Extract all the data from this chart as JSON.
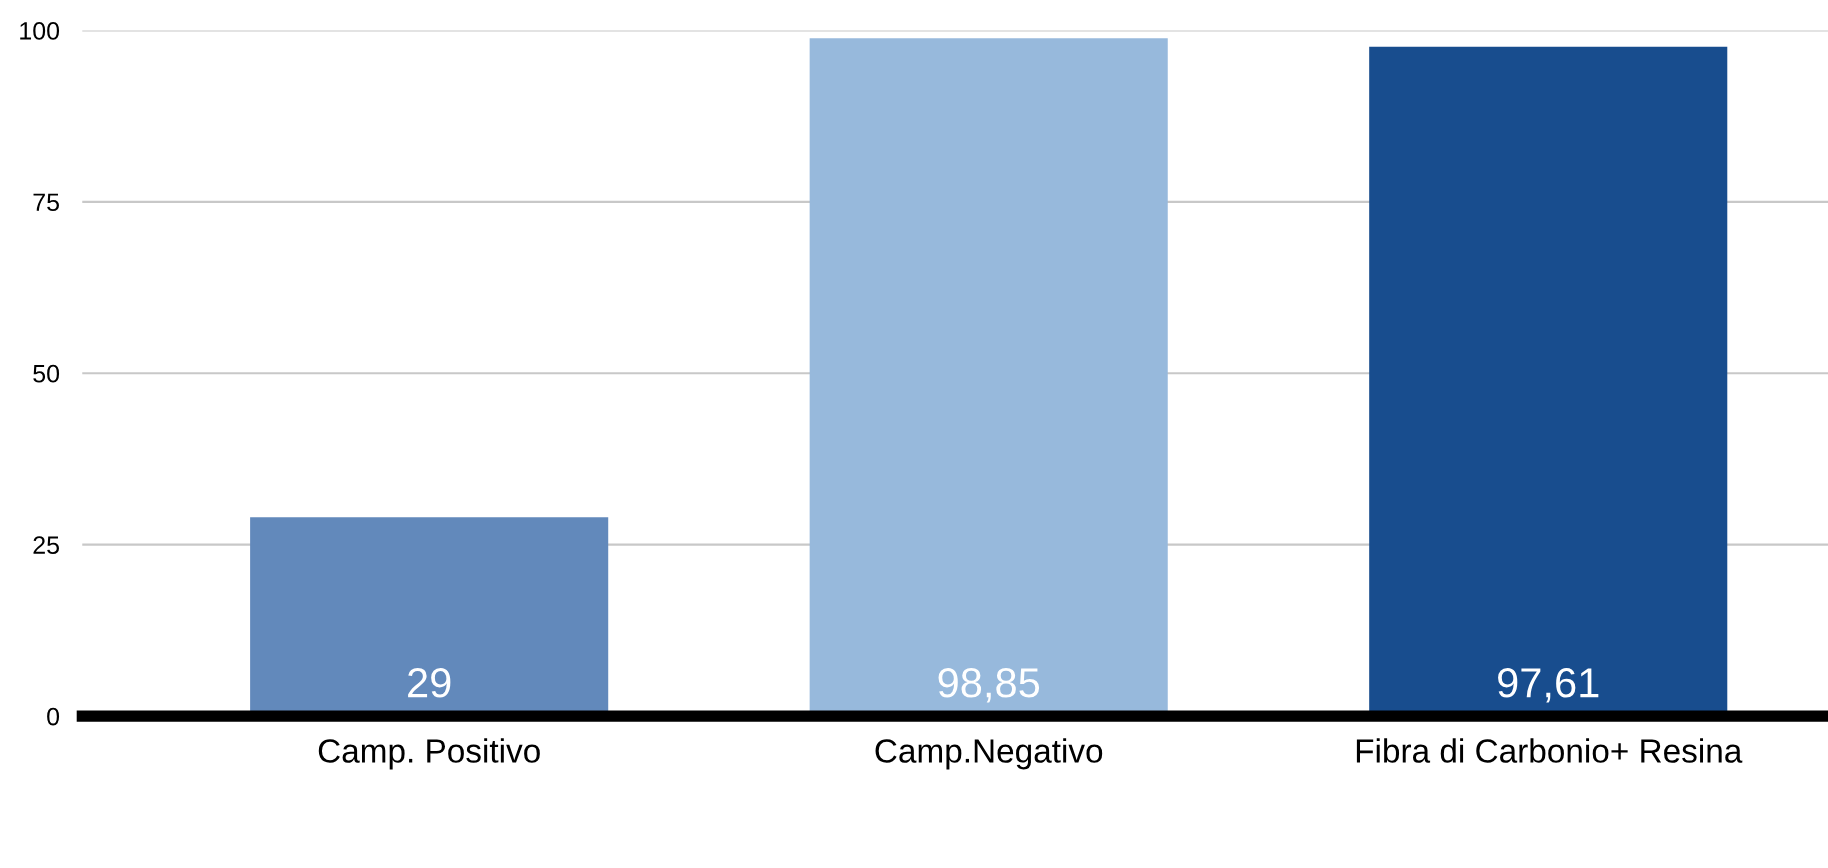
{
  "chart_data": {
    "type": "bar",
    "categories": [
      "Camp. Positivo",
      "Camp.Negativo",
      "Fibra di Carbonio+ Resina"
    ],
    "values": [
      29,
      98.85,
      97.61
    ],
    "colors": [
      "#6289bb",
      "#97b9dc",
      "#184d8e"
    ],
    "value_labels": [
      "29",
      "98,85",
      "97,61"
    ],
    "ylim": [
      0,
      100
    ],
    "yticks": [
      0,
      25,
      50,
      75,
      100
    ],
    "grid": "y",
    "legend": false
  }
}
